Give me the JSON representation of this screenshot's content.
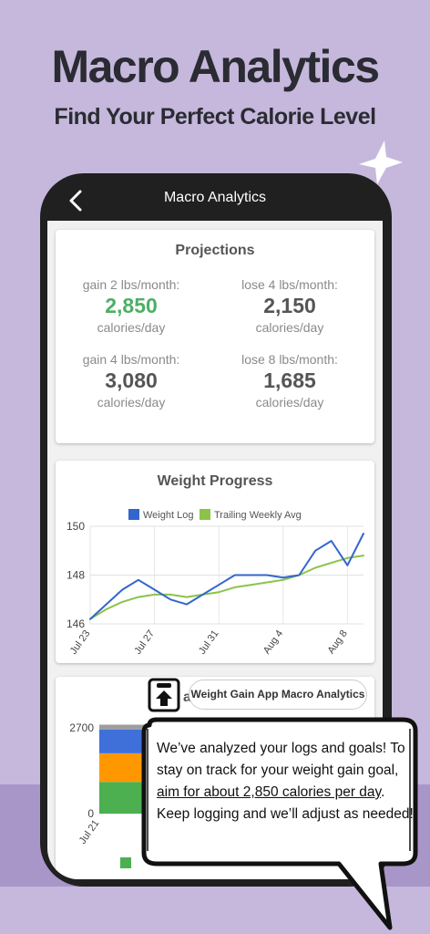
{
  "promo": {
    "headline": "Macro Analytics",
    "subhead": "Find Your Perfect Calorie Level"
  },
  "appbar": {
    "title": "Macro Analytics",
    "back_icon": "chevron-left-icon"
  },
  "projections": {
    "title": "Projections",
    "items": [
      {
        "label": "gain 2 lbs/month:",
        "value": "2,850",
        "unit": "calories/day",
        "highlight": true
      },
      {
        "label": "lose 4 lbs/month:",
        "value": "2,150",
        "unit": "calories/day",
        "highlight": false
      },
      {
        "label": "gain 4 lbs/month:",
        "value": "3,080",
        "unit": "calories/day",
        "highlight": false
      },
      {
        "label": "lose 8 lbs/month:",
        "value": "1,685",
        "unit": "calories/day",
        "highlight": false
      }
    ]
  },
  "chart_data": [
    {
      "type": "line",
      "title": "Weight Progress",
      "xlabel": "",
      "ylabel": "",
      "ylim": [
        146,
        150
      ],
      "x_ticks": [
        "Jul 23",
        "Jul 27",
        "Jul 31",
        "Aug 4",
        "Aug 8"
      ],
      "y_ticks": [
        "146",
        "148",
        "150"
      ],
      "legend_position": "top",
      "series": [
        {
          "name": "Weight Log",
          "color": "#3366cc",
          "x": [
            "Jul 23",
            "Jul 24",
            "Jul 25",
            "Jul 26",
            "Jul 27",
            "Jul 28",
            "Jul 29",
            "Jul 30",
            "Jul 31",
            "Aug 1",
            "Aug 2",
            "Aug 3",
            "Aug 4",
            "Aug 5",
            "Aug 6",
            "Aug 7",
            "Aug 8",
            "Aug 9"
          ],
          "values": [
            146.2,
            146.8,
            147.4,
            147.8,
            147.4,
            147.0,
            146.8,
            147.2,
            147.6,
            148.0,
            148.0,
            148.0,
            147.9,
            148.0,
            149.0,
            149.4,
            148.4,
            149.7
          ]
        },
        {
          "name": "Trailing Weekly Avg",
          "color": "#8bc34a",
          "x": [
            "Jul 23",
            "Jul 24",
            "Jul 25",
            "Jul 26",
            "Jul 27",
            "Jul 28",
            "Jul 29",
            "Jul 30",
            "Jul 31",
            "Aug 1",
            "Aug 2",
            "Aug 3",
            "Aug 4",
            "Aug 5",
            "Aug 6",
            "Aug 7",
            "Aug 8",
            "Aug 9"
          ],
          "values": [
            146.2,
            146.6,
            146.9,
            147.1,
            147.2,
            147.2,
            147.1,
            147.2,
            147.3,
            147.5,
            147.6,
            147.7,
            147.8,
            148.0,
            148.3,
            148.5,
            148.7,
            148.8
          ]
        }
      ]
    },
    {
      "type": "area",
      "title": "",
      "xlabel": "",
      "ylabel": "",
      "ylim": [
        0,
        2700
      ],
      "y_ticks": [
        "2700",
        "0"
      ],
      "x_ticks": [
        "Jul 21"
      ],
      "legend_position": "bottom",
      "series": [
        {
          "name": "",
          "color": "#4caf50",
          "values": [
            1000,
            1000,
            1000
          ]
        },
        {
          "name": "",
          "color": "#ff9800",
          "values": [
            900,
            900,
            900
          ]
        },
        {
          "name": "",
          "color": "#3f6fd9",
          "values": [
            750,
            750,
            750
          ]
        },
        {
          "name": "",
          "color": "#9e9e9e",
          "values": [
            150,
            150,
            150
          ]
        }
      ]
    }
  ],
  "macro_card": {
    "title_fragment": "a",
    "pill_label": "Weight Gain App Macro Analytics",
    "upload_icon": "upload-icon"
  },
  "bubble": {
    "text_before": "We’ve analyzed your logs and goals! To stay on track for your weight gain goal, ",
    "text_underlined": "aim for about 2,850 calories per day",
    "text_after": ". Keep logging and we’ll adjust as needed!"
  },
  "colors": {
    "background": "#c5b8dc",
    "accent_green": "#4caf66",
    "dark": "#202020"
  }
}
